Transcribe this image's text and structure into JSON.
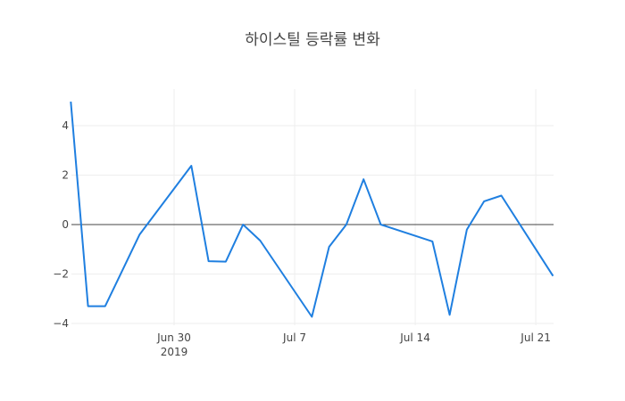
{
  "chart_data": {
    "type": "line",
    "title": "하이스틸 등락률 변화",
    "xlabel": "",
    "ylabel": "",
    "ylim": [
      -4.2,
      5.2
    ],
    "grid": true,
    "legend": null,
    "x_ticks": [
      {
        "label": "Jun 30",
        "sub": "2019",
        "date": "2019-06-30"
      },
      {
        "label": "Jul 7",
        "sub": "",
        "date": "2019-07-07"
      },
      {
        "label": "Jul 14",
        "sub": "",
        "date": "2019-07-14"
      },
      {
        "label": "Jul 21",
        "sub": "",
        "date": "2019-07-21"
      }
    ],
    "y_ticks": [
      4,
      2,
      0,
      -2,
      -4
    ],
    "y_tick_labels": [
      "4",
      "2",
      "0",
      "−2",
      "−4"
    ],
    "series": [
      {
        "name": "등락률",
        "color": "#1f7fe0",
        "x": [
          "2019-06-24",
          "2019-06-25",
          "2019-06-26",
          "2019-06-28",
          "2019-07-01",
          "2019-07-02",
          "2019-07-03",
          "2019-07-04",
          "2019-07-05",
          "2019-07-08",
          "2019-07-09",
          "2019-07-10",
          "2019-07-11",
          "2019-07-12",
          "2019-07-15",
          "2019-07-16",
          "2019-07-17",
          "2019-07-18",
          "2019-07-19",
          "2019-07-22"
        ],
        "values": [
          4.97,
          -3.3,
          -3.3,
          -0.4,
          2.38,
          -1.48,
          -1.5,
          0.0,
          -0.65,
          -3.73,
          -0.9,
          0.0,
          1.83,
          0.0,
          -0.68,
          -3.65,
          -0.2,
          0.94,
          1.17,
          -2.08
        ]
      }
    ]
  }
}
